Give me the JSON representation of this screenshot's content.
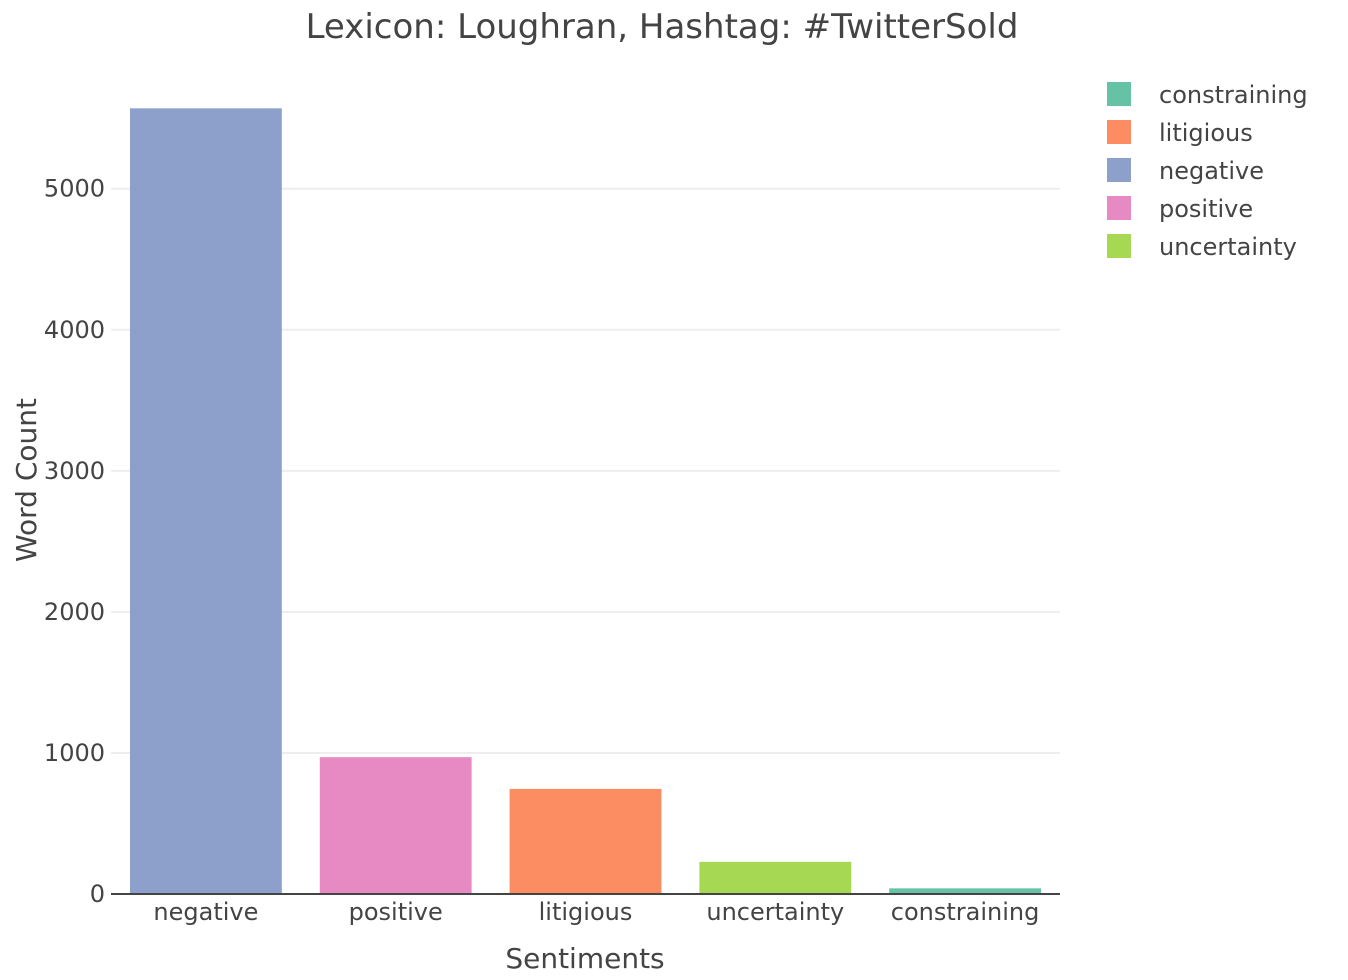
{
  "chart_data": {
    "type": "bar",
    "title": "Lexicon: Loughran, Hashtag: #TwitterSold",
    "xlabel": "Sentiments",
    "ylabel": "Word Count",
    "categories": [
      "negative",
      "positive",
      "litigious",
      "uncertainty",
      "constraining"
    ],
    "values": [
      5570,
      970,
      745,
      228,
      40
    ],
    "bar_colors": [
      "#8da0cb",
      "#e78ac3",
      "#fc8d62",
      "#a6d854",
      "#66c2a5"
    ],
    "ylim": [
      0,
      5870
    ],
    "yticks": [
      0,
      1000,
      2000,
      3000,
      4000,
      5000
    ],
    "ytick_labels": [
      "0",
      "1000",
      "2000",
      "3000",
      "4000",
      "5000"
    ],
    "grid": true,
    "legend": {
      "position": "top-right",
      "entries": [
        {
          "label": "constraining",
          "color": "#66c2a5"
        },
        {
          "label": "litigious",
          "color": "#fc8d62"
        },
        {
          "label": "negative",
          "color": "#8da0cb"
        },
        {
          "label": "positive",
          "color": "#e78ac3"
        },
        {
          "label": "uncertainty",
          "color": "#a6d854"
        }
      ]
    }
  }
}
